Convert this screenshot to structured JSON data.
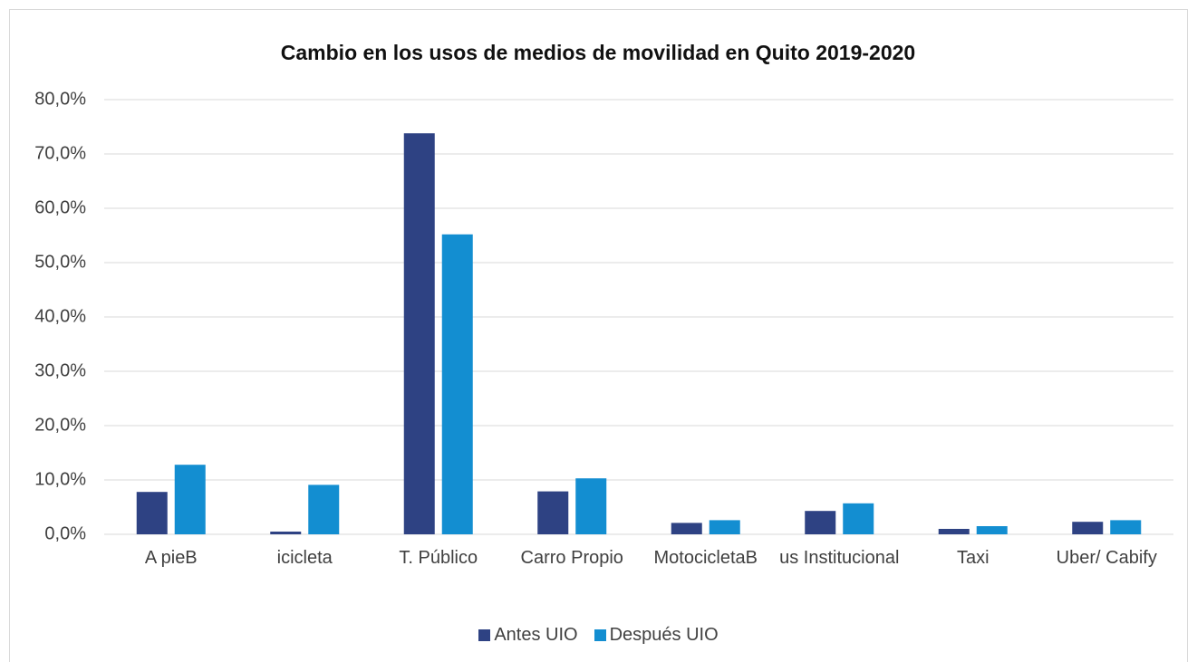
{
  "chart_data": {
    "type": "bar",
    "title": "Cambio en los usos de medios de movilidad en Quito 2019-2020",
    "categories": [
      "A pieB",
      "icicleta",
      "T. Público",
      "Carro Propio",
      "MotocicletaB",
      "us Institucional",
      "Taxi",
      "Uber/ Cabify"
    ],
    "series": [
      {
        "name": "Antes UIO",
        "color": "#2e4283",
        "values": [
          7.8,
          0.5,
          73.8,
          7.9,
          2.1,
          4.3,
          1.0,
          2.3
        ]
      },
      {
        "name": "Después UIO",
        "color": "#138ed1",
        "values": [
          12.8,
          9.1,
          55.2,
          10.3,
          2.6,
          5.7,
          1.5,
          2.6
        ]
      }
    ],
    "ylim": [
      0,
      80
    ],
    "yticks": [
      {
        "value": 0,
        "label": "0,0%"
      },
      {
        "value": 10,
        "label": "10,0%"
      },
      {
        "value": 20,
        "label": "20,0%"
      },
      {
        "value": 30,
        "label": "30,0%"
      },
      {
        "value": 40,
        "label": "40,0%"
      },
      {
        "value": 50,
        "label": "50,0%"
      },
      {
        "value": 60,
        "label": "60,0%"
      },
      {
        "value": 70,
        "label": "70,0%"
      },
      {
        "value": 80,
        "label": "80,0%"
      }
    ],
    "grid": true,
    "legend": "bottom"
  }
}
